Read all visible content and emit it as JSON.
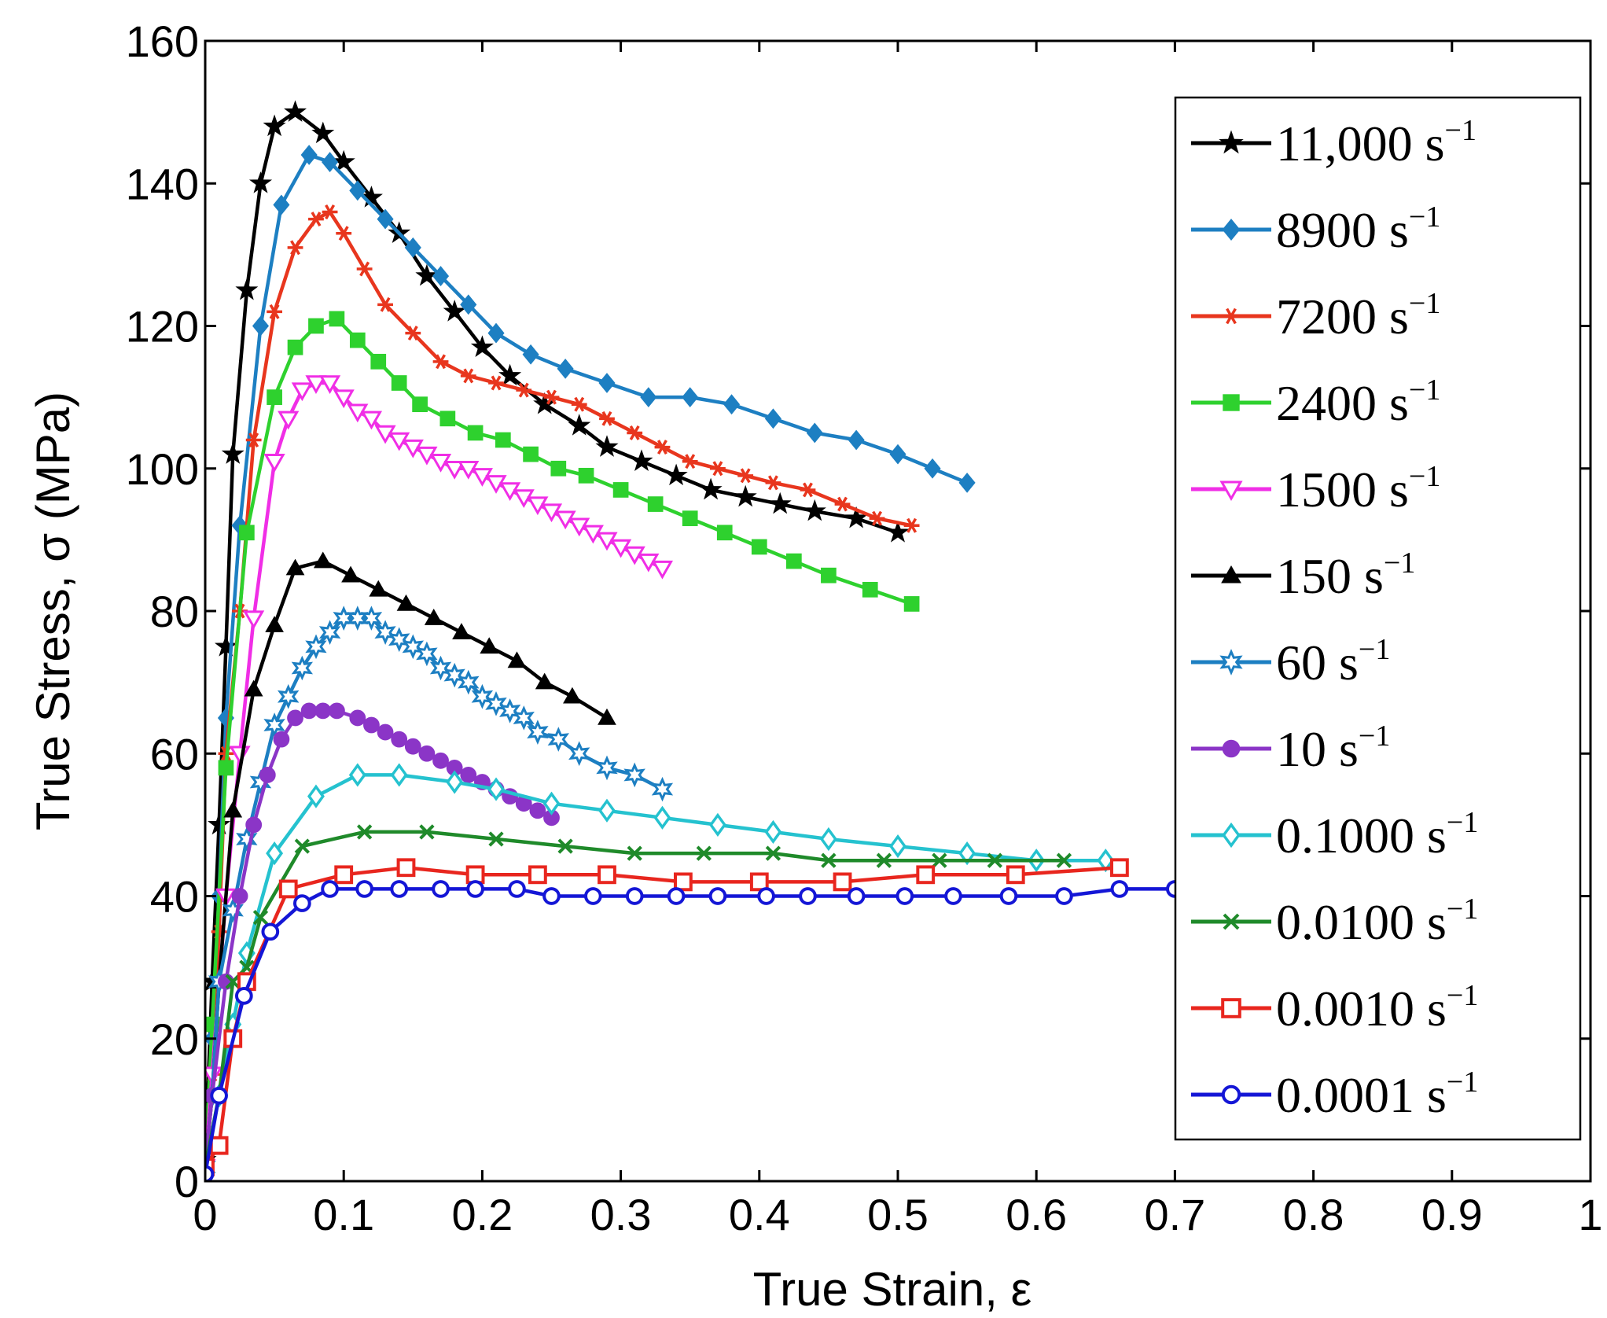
{
  "chart_data": {
    "type": "line",
    "title": "",
    "xlabel": "True Strain, ε",
    "ylabel": "True Stress, σ (MPa)",
    "xlim": [
      0,
      1
    ],
    "ylim": [
      0,
      160
    ],
    "xticks": [
      0,
      0.1,
      0.2,
      0.3,
      0.4,
      0.5,
      0.6,
      0.7,
      0.8,
      0.9,
      1
    ],
    "xtick_labels": [
      "0",
      "0.1",
      "0.2",
      "0.3",
      "0.4",
      "0.5",
      "0.6",
      "0.7",
      "0.8",
      "0.9",
      "1"
    ],
    "yticks": [
      0,
      20,
      40,
      60,
      80,
      100,
      120,
      140,
      160
    ],
    "ytick_labels": [
      "0",
      "20",
      "40",
      "60",
      "80",
      "100",
      "120",
      "140",
      "160"
    ],
    "grid": false,
    "legend_position": "top-right",
    "series": [
      {
        "name": "11,000",
        "unit": "s",
        "exp": "−1",
        "color": "#000000",
        "marker": "star5",
        "x": [
          0,
          0.005,
          0.01,
          0.015,
          0.02,
          0.03,
          0.04,
          0.05,
          0.065,
          0.085,
          0.1,
          0.12,
          0.14,
          0.16,
          0.18,
          0.2,
          0.22,
          0.245,
          0.27,
          0.29,
          0.315,
          0.34,
          0.365,
          0.39,
          0.415,
          0.44,
          0.47,
          0.5
        ],
        "y": [
          3,
          28,
          50,
          75,
          102,
          125,
          140,
          148,
          150,
          147,
          143,
          138,
          133,
          127,
          122,
          117,
          113,
          109,
          106,
          103,
          101,
          99,
          97,
          96,
          95,
          94,
          93,
          91
        ]
      },
      {
        "name": "8900",
        "unit": "s",
        "exp": "−1",
        "color": "#1d7fc2",
        "marker": "diamond",
        "x": [
          0,
          0.005,
          0.01,
          0.015,
          0.025,
          0.04,
          0.055,
          0.075,
          0.09,
          0.11,
          0.13,
          0.15,
          0.17,
          0.19,
          0.21,
          0.235,
          0.26,
          0.29,
          0.32,
          0.35,
          0.38,
          0.41,
          0.44,
          0.47,
          0.5,
          0.525,
          0.55
        ],
        "y": [
          2,
          20,
          40,
          65,
          92,
          120,
          137,
          144,
          143,
          139,
          135,
          131,
          127,
          123,
          119,
          116,
          114,
          112,
          110,
          110,
          109,
          107,
          105,
          104,
          102,
          100,
          98
        ]
      },
      {
        "name": "7200",
        "unit": "s",
        "exp": "−1",
        "color": "#e8361e",
        "marker": "asterisk",
        "x": [
          0,
          0.005,
          0.01,
          0.015,
          0.025,
          0.035,
          0.05,
          0.065,
          0.08,
          0.09,
          0.1,
          0.115,
          0.13,
          0.15,
          0.17,
          0.19,
          0.21,
          0.23,
          0.25,
          0.27,
          0.29,
          0.31,
          0.33,
          0.35,
          0.37,
          0.39,
          0.41,
          0.435,
          0.46,
          0.485,
          0.51
        ],
        "y": [
          2,
          15,
          35,
          60,
          80,
          104,
          122,
          131,
          135,
          136,
          133,
          128,
          123,
          119,
          115,
          113,
          112,
          111,
          110,
          109,
          107,
          105,
          103,
          101,
          100,
          99,
          98,
          97,
          95,
          93,
          92
        ]
      },
      {
        "name": "2400",
        "unit": "s",
        "exp": "−1",
        "color": "#2ed12e",
        "marker": "square",
        "x": [
          0,
          0.005,
          0.015,
          0.03,
          0.05,
          0.065,
          0.08,
          0.095,
          0.11,
          0.125,
          0.14,
          0.155,
          0.175,
          0.195,
          0.215,
          0.235,
          0.255,
          0.275,
          0.3,
          0.325,
          0.35,
          0.375,
          0.4,
          0.425,
          0.45,
          0.48,
          0.51
        ],
        "y": [
          2,
          22,
          58,
          91,
          110,
          117,
          120,
          121,
          118,
          115,
          112,
          109,
          107,
          105,
          104,
          102,
          100,
          99,
          97,
          95,
          93,
          91,
          89,
          87,
          85,
          83,
          81
        ]
      },
      {
        "name": "1500",
        "unit": "s",
        "exp": "−1",
        "color": "#f02ee6",
        "marker": "triangle-down",
        "x": [
          0,
          0.005,
          0.015,
          0.025,
          0.035,
          0.05,
          0.06,
          0.07,
          0.08,
          0.09,
          0.1,
          0.11,
          0.12,
          0.13,
          0.14,
          0.15,
          0.16,
          0.17,
          0.18,
          0.19,
          0.2,
          0.21,
          0.22,
          0.23,
          0.24,
          0.25,
          0.26,
          0.27,
          0.28,
          0.29,
          0.3,
          0.31,
          0.32,
          0.33
        ],
        "y": [
          2,
          15,
          40,
          60,
          79,
          101,
          107,
          111,
          112,
          112,
          110,
          108,
          107,
          105,
          104,
          103,
          102,
          101,
          100,
          100,
          99,
          98,
          97,
          96,
          95,
          94,
          93,
          92,
          91,
          90,
          89,
          88,
          87,
          86
        ]
      },
      {
        "name": "150",
        "unit": "s",
        "exp": "−1",
        "color": "#000000",
        "marker": "triangle-up",
        "x": [
          0,
          0.005,
          0.01,
          0.02,
          0.035,
          0.05,
          0.065,
          0.085,
          0.105,
          0.125,
          0.145,
          0.165,
          0.185,
          0.205,
          0.225,
          0.245,
          0.265,
          0.29
        ],
        "y": [
          2,
          12,
          28,
          52,
          69,
          78,
          86,
          87,
          85,
          83,
          81,
          79,
          77,
          75,
          73,
          70,
          68,
          65
        ]
      },
      {
        "name": "60",
        "unit": "s",
        "exp": "−1",
        "color": "#1d7fc2",
        "marker": "star6",
        "x": [
          0,
          0.005,
          0.01,
          0.02,
          0.03,
          0.04,
          0.05,
          0.06,
          0.07,
          0.08,
          0.09,
          0.1,
          0.11,
          0.12,
          0.13,
          0.14,
          0.15,
          0.16,
          0.17,
          0.18,
          0.19,
          0.2,
          0.21,
          0.22,
          0.23,
          0.24,
          0.255,
          0.27,
          0.29,
          0.31,
          0.33
        ],
        "y": [
          2,
          12,
          28,
          38,
          48,
          56,
          64,
          68,
          72,
          75,
          77,
          79,
          79,
          79,
          77,
          76,
          75,
          74,
          72,
          71,
          70,
          68,
          67,
          66,
          65,
          63,
          62,
          60,
          58,
          57,
          55
        ]
      },
      {
        "name": "10",
        "unit": "s",
        "exp": "−1",
        "color": "#8b35c7",
        "marker": "circle-filled",
        "x": [
          0,
          0.005,
          0.015,
          0.025,
          0.035,
          0.045,
          0.055,
          0.065,
          0.075,
          0.085,
          0.095,
          0.11,
          0.12,
          0.13,
          0.14,
          0.15,
          0.16,
          0.17,
          0.18,
          0.19,
          0.2,
          0.21,
          0.22,
          0.23,
          0.24,
          0.25
        ],
        "y": [
          2,
          12,
          28,
          40,
          50,
          57,
          62,
          65,
          66,
          66,
          66,
          65,
          64,
          63,
          62,
          61,
          60,
          59,
          58,
          57,
          56,
          55,
          54,
          53,
          52,
          51
        ]
      },
      {
        "name": "0.1000",
        "unit": "s",
        "exp": "−1",
        "color": "#25c2cf",
        "marker": "diamond-open",
        "x": [
          0,
          0.01,
          0.02,
          0.03,
          0.05,
          0.08,
          0.11,
          0.14,
          0.18,
          0.21,
          0.25,
          0.29,
          0.33,
          0.37,
          0.41,
          0.45,
          0.5,
          0.55,
          0.6,
          0.65
        ],
        "y": [
          2,
          12,
          22,
          32,
          46,
          54,
          57,
          57,
          56,
          55,
          53,
          52,
          51,
          50,
          49,
          48,
          47,
          46,
          45,
          45
        ]
      },
      {
        "name": "0.0100",
        "unit": "s",
        "exp": "−1",
        "color": "#1f8a2a",
        "marker": "x",
        "x": [
          0,
          0.01,
          0.02,
          0.03,
          0.04,
          0.07,
          0.115,
          0.16,
          0.21,
          0.26,
          0.31,
          0.36,
          0.41,
          0.45,
          0.49,
          0.53,
          0.57,
          0.62
        ],
        "y": [
          2,
          12,
          28,
          30,
          37,
          47,
          49,
          49,
          48,
          47,
          46,
          46,
          46,
          45,
          45,
          45,
          45,
          45
        ]
      },
      {
        "name": "0.0010",
        "unit": "s",
        "exp": "−1",
        "color": "#e8261e",
        "marker": "square-open",
        "x": [
          0,
          0.01,
          0.02,
          0.03,
          0.06,
          0.1,
          0.145,
          0.195,
          0.24,
          0.29,
          0.345,
          0.4,
          0.46,
          0.52,
          0.585,
          0.66
        ],
        "y": [
          2,
          5,
          20,
          28,
          41,
          43,
          44,
          43,
          43,
          43,
          42,
          42,
          42,
          43,
          43,
          44
        ]
      },
      {
        "name": "0.0001",
        "unit": "s",
        "exp": "−1",
        "color": "#1416d6",
        "marker": "circle-open",
        "x": [
          0,
          0.01,
          0.028,
          0.047,
          0.07,
          0.09,
          0.115,
          0.14,
          0.17,
          0.195,
          0.225,
          0.25,
          0.28,
          0.31,
          0.34,
          0.37,
          0.405,
          0.435,
          0.47,
          0.505,
          0.54,
          0.58,
          0.62,
          0.66,
          0.7
        ],
        "y": [
          1,
          12,
          26,
          35,
          39,
          41,
          41,
          41,
          41,
          41,
          41,
          40,
          40,
          40,
          40,
          40,
          40,
          40,
          40,
          40,
          40,
          40,
          40,
          41,
          41
        ]
      }
    ]
  }
}
